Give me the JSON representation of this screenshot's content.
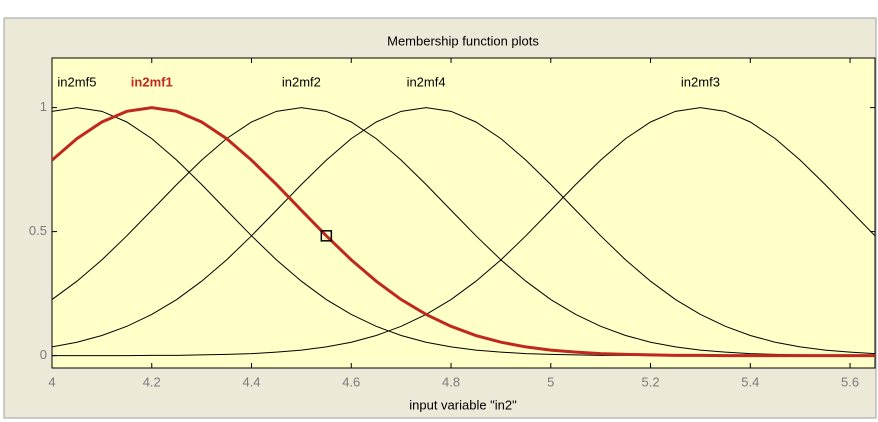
{
  "chart_data": {
    "type": "line",
    "title": "Membership function plots",
    "x_label": "input variable \"in2\"",
    "x": [
      4,
      4.05,
      4.1,
      4.15,
      4.2,
      4.25,
      4.3,
      4.35,
      4.4,
      4.45,
      4.5,
      4.55,
      4.6,
      4.65,
      4.7,
      4.75,
      4.8,
      4.85,
      4.9,
      4.95,
      5,
      5.05,
      5.1,
      5.15,
      5.2,
      5.25,
      5.3,
      5.35,
      5.4,
      5.45,
      5.5,
      5.55,
      5.6,
      5.65
    ],
    "series": [
      {
        "name": "in2mf1",
        "color": "#c0281e",
        "values": [
          0.788,
          0.875,
          0.942,
          0.985,
          1,
          0.985,
          0.942,
          0.875,
          0.788,
          0.69,
          0.586,
          0.483,
          0.386,
          0.3,
          0.226,
          0.166,
          0.118,
          0.081,
          0.054,
          0.035,
          0.022,
          0.014,
          0.008,
          0.005,
          0.003,
          0.001,
          0.001,
          0,
          0,
          0,
          0,
          0,
          0,
          0
        ]
      },
      {
        "name": "in2mf2",
        "color": "#000000",
        "values": [
          0.226,
          0.3,
          0.386,
          0.483,
          0.586,
          0.69,
          0.788,
          0.875,
          0.942,
          0.985,
          1,
          0.985,
          0.942,
          0.875,
          0.788,
          0.69,
          0.586,
          0.483,
          0.386,
          0.3,
          0.226,
          0.166,
          0.118,
          0.081,
          0.054,
          0.035,
          0.022,
          0.014,
          0.008,
          0.005,
          0.003,
          0.001,
          0.001,
          0
        ]
      },
      {
        "name": "in2mf3",
        "color": "#000000",
        "values": [
          0,
          0,
          0,
          0,
          0.001,
          0.001,
          0.003,
          0.005,
          0.008,
          0.014,
          0.022,
          0.035,
          0.054,
          0.081,
          0.118,
          0.166,
          0.226,
          0.3,
          0.386,
          0.483,
          0.586,
          0.69,
          0.788,
          0.875,
          0.942,
          0.985,
          1,
          0.985,
          0.942,
          0.875,
          0.788,
          0.69,
          0.586,
          0.483
        ]
      },
      {
        "name": "in2mf4",
        "color": "#000000",
        "values": [
          0.035,
          0.054,
          0.081,
          0.118,
          0.166,
          0.226,
          0.3,
          0.386,
          0.483,
          0.586,
          0.69,
          0.788,
          0.875,
          0.942,
          0.985,
          1,
          0.985,
          0.942,
          0.875,
          0.788,
          0.69,
          0.586,
          0.483,
          0.386,
          0.3,
          0.226,
          0.166,
          0.118,
          0.081,
          0.054,
          0.035,
          0.022,
          0.014,
          0.008
        ]
      },
      {
        "name": "in2mf5",
        "color": "#000000",
        "values": [
          0.985,
          1,
          0.985,
          0.942,
          0.875,
          0.788,
          0.69,
          0.586,
          0.483,
          0.386,
          0.3,
          0.226,
          0.166,
          0.118,
          0.081,
          0.054,
          0.035,
          0.022,
          0.014,
          0.008,
          0.005,
          0.003,
          0.001,
          0.001,
          0,
          0,
          0,
          0,
          0,
          0,
          0,
          0,
          0,
          0
        ]
      }
    ],
    "selected": 0,
    "marker": {
      "x": 4.55,
      "y": 0.483
    },
    "xlim": [
      4,
      5.65
    ],
    "xticks": [
      4,
      4.2,
      4.4,
      4.6,
      4.8,
      5,
      5.2,
      5.4,
      5.6
    ],
    "ylim": [
      -0.05,
      1.2
    ],
    "yticks": [
      0,
      0.5,
      1
    ]
  }
}
